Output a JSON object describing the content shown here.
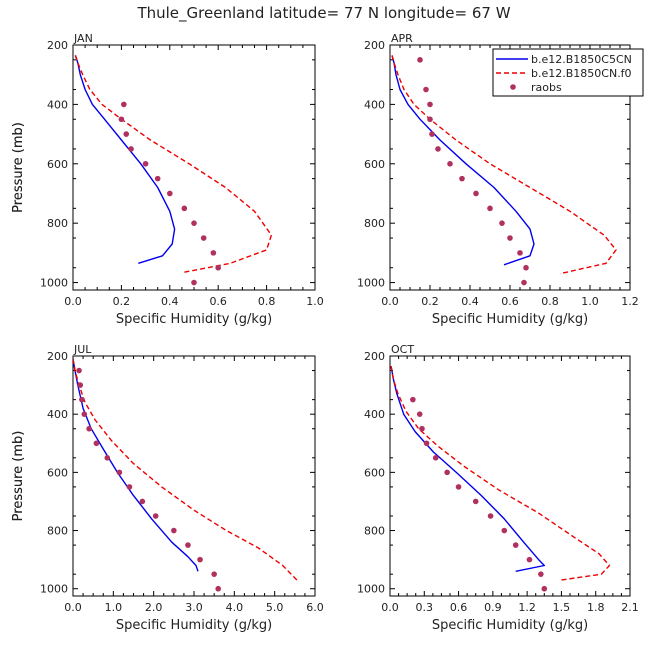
{
  "title": "Thule_Greenland  latitude= 77 N longitude= 67 W",
  "legend": [
    {
      "label": "b.e12.B1850C5CN",
      "color": "#0000ee",
      "style": "solid"
    },
    {
      "label": "b.e12.B1850CN.f0",
      "color": "#ee0000",
      "style": "dashed"
    },
    {
      "label": "raobs",
      "color": "#b03060",
      "style": "dots"
    }
  ],
  "chart_data": [
    {
      "type": "line",
      "panel": "JAN",
      "xlabel": "Specific Humidity (g/kg)",
      "ylabel": "Pressure (mb)",
      "xlim": [
        0,
        1.0
      ],
      "ylim": [
        1025,
        200
      ],
      "xticks": [
        "0.0",
        "0.2",
        "0.4",
        "0.6",
        "0.8",
        "1.0"
      ],
      "yticks": [
        "200",
        "400",
        "600",
        "800",
        "1000"
      ],
      "series": [
        {
          "name": "b.e12.B1850C5CN",
          "x": [
            0.01,
            0.02,
            0.03,
            0.05,
            0.08,
            0.13,
            0.2,
            0.28,
            0.35,
            0.4,
            0.42,
            0.41,
            0.37,
            0.27
          ],
          "y": [
            235,
            260,
            300,
            350,
            400,
            450,
            520,
            600,
            680,
            760,
            820,
            870,
            910,
            935
          ]
        },
        {
          "name": "b.e12.B1850CN.f0",
          "x": [
            0.01,
            0.02,
            0.04,
            0.07,
            0.12,
            0.2,
            0.32,
            0.48,
            0.63,
            0.75,
            0.82,
            0.8,
            0.65,
            0.46
          ],
          "y": [
            235,
            260,
            300,
            350,
            400,
            450,
            520,
            600,
            680,
            760,
            840,
            890,
            935,
            965
          ]
        },
        {
          "name": "raobs",
          "x": [
            0.21,
            0.2,
            0.22,
            0.24,
            0.3,
            0.35,
            0.4,
            0.46,
            0.5,
            0.54,
            0.58,
            0.6,
            0.5
          ],
          "y": [
            400,
            450,
            500,
            550,
            600,
            650,
            700,
            750,
            800,
            850,
            900,
            950,
            1000
          ]
        }
      ]
    },
    {
      "type": "line",
      "panel": "APR",
      "xlabel": "Specific Humidity (g/kg)",
      "ylabel": "Pressure (mb)",
      "xlim": [
        0,
        1.2
      ],
      "ylim": [
        1025,
        200
      ],
      "xticks": [
        "0.0",
        "0.2",
        "0.4",
        "0.6",
        "0.8",
        "1.0",
        "1.2"
      ],
      "yticks": [
        "200",
        "400",
        "600",
        "800",
        "1000"
      ],
      "series": [
        {
          "name": "b.e12.B1850C5CN",
          "x": [
            0.01,
            0.02,
            0.03,
            0.05,
            0.09,
            0.15,
            0.25,
            0.38,
            0.52,
            0.63,
            0.7,
            0.72,
            0.7,
            0.57
          ],
          "y": [
            235,
            260,
            300,
            350,
            400,
            450,
            520,
            600,
            680,
            760,
            820,
            870,
            910,
            940
          ]
        },
        {
          "name": "b.e12.B1850CN.f0",
          "x": [
            0.01,
            0.02,
            0.04,
            0.07,
            0.12,
            0.2,
            0.33,
            0.5,
            0.7,
            0.9,
            1.07,
            1.13,
            1.08,
            0.85
          ],
          "y": [
            235,
            260,
            300,
            350,
            400,
            450,
            520,
            600,
            680,
            760,
            840,
            890,
            935,
            970
          ]
        },
        {
          "name": "raobs",
          "x": [
            0.15,
            0.18,
            0.2,
            0.2,
            0.21,
            0.24,
            0.3,
            0.36,
            0.43,
            0.5,
            0.56,
            0.6,
            0.65,
            0.68,
            0.67
          ],
          "y": [
            250,
            350,
            400,
            450,
            500,
            550,
            600,
            650,
            700,
            750,
            800,
            850,
            900,
            950,
            1000
          ]
        }
      ]
    },
    {
      "type": "line",
      "panel": "JUL",
      "xlabel": "Specific Humidity (g/kg)",
      "ylabel": "Pressure (mb)",
      "xlim": [
        0,
        6.0
      ],
      "ylim": [
        1025,
        200
      ],
      "xticks": [
        "0.0",
        "1.0",
        "2.0",
        "3.0",
        "4.0",
        "5.0",
        "6.0"
      ],
      "yticks": [
        "200",
        "400",
        "600",
        "800",
        "1000"
      ],
      "series": [
        {
          "name": "b.e12.B1850C5CN",
          "x": [
            0.0,
            0.05,
            0.12,
            0.25,
            0.45,
            0.75,
            1.1,
            1.5,
            1.95,
            2.45,
            2.85,
            3.05,
            3.1
          ],
          "y": [
            210,
            250,
            300,
            380,
            450,
            520,
            600,
            680,
            760,
            840,
            890,
            920,
            940
          ]
        },
        {
          "name": "b.e12.B1850CN.f0",
          "x": [
            0.0,
            0.05,
            0.15,
            0.3,
            0.55,
            0.95,
            1.5,
            2.2,
            3.0,
            3.8,
            4.6,
            5.2,
            5.55
          ],
          "y": [
            210,
            250,
            300,
            360,
            420,
            490,
            570,
            650,
            730,
            800,
            860,
            920,
            970
          ]
        },
        {
          "name": "raobs",
          "x": [
            0.15,
            0.18,
            0.22,
            0.28,
            0.4,
            0.58,
            0.85,
            1.15,
            1.4,
            1.72,
            2.05,
            2.5,
            2.85,
            3.15,
            3.5,
            3.6
          ],
          "y": [
            250,
            300,
            350,
            400,
            450,
            500,
            550,
            600,
            650,
            700,
            750,
            800,
            850,
            900,
            950,
            1000
          ]
        }
      ]
    },
    {
      "type": "line",
      "panel": "OCT",
      "xlabel": "Specific Humidity (g/kg)",
      "ylabel": "Pressure (mb)",
      "xlim": [
        0,
        2.1
      ],
      "ylim": [
        1025,
        200
      ],
      "xticks": [
        "0.0",
        "0.3",
        "0.6",
        "0.9",
        "1.2",
        "1.5",
        "1.8",
        "2.1"
      ],
      "yticks": [
        "200",
        "400",
        "600",
        "800",
        "1000"
      ],
      "series": [
        {
          "name": "b.e12.B1850C5CN",
          "x": [
            0.01,
            0.03,
            0.06,
            0.12,
            0.22,
            0.38,
            0.58,
            0.8,
            1.0,
            1.17,
            1.3,
            1.35,
            1.1
          ],
          "y": [
            235,
            280,
            330,
            400,
            460,
            530,
            600,
            680,
            760,
            840,
            900,
            920,
            940
          ]
        },
        {
          "name": "b.e12.B1850CN.f0",
          "x": [
            0.01,
            0.03,
            0.07,
            0.14,
            0.25,
            0.42,
            0.65,
            0.95,
            1.3,
            1.6,
            1.83,
            1.92,
            1.85,
            1.5
          ],
          "y": [
            235,
            280,
            330,
            390,
            450,
            510,
            580,
            660,
            740,
            820,
            880,
            920,
            950,
            970
          ]
        },
        {
          "name": "raobs",
          "x": [
            0.2,
            0.26,
            0.28,
            0.32,
            0.4,
            0.5,
            0.6,
            0.75,
            0.88,
            1.0,
            1.1,
            1.22,
            1.32,
            1.35
          ],
          "y": [
            350,
            400,
            450,
            500,
            550,
            600,
            650,
            700,
            750,
            800,
            850,
            900,
            950,
            1000
          ]
        }
      ]
    }
  ]
}
